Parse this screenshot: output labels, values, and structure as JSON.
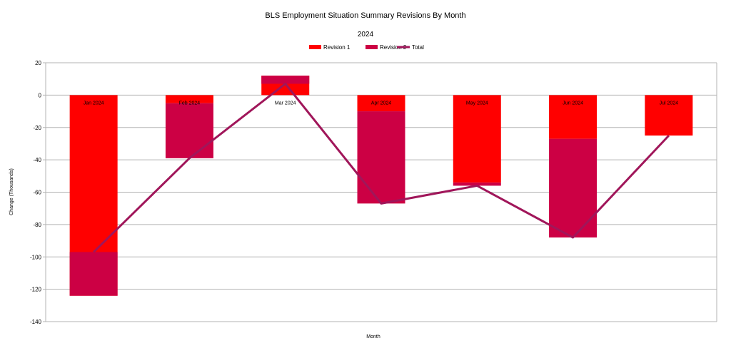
{
  "chart_data": {
    "type": "bar",
    "title": "BLS Employment Situation Summary Revisions By Month",
    "subtitle": "2024",
    "xlabel": "Month",
    "ylabel": "Change (Thousands)",
    "categories": [
      "Jan 2024",
      "Feb 2024",
      "Mar 2024",
      "Apr 2024",
      "May 2024",
      "Jun 2024",
      "Jul 2024"
    ],
    "ylim": [
      -140,
      20
    ],
    "yticks": [
      20,
      0,
      -20,
      -40,
      -60,
      -80,
      -100,
      -120,
      -140
    ],
    "grid": true,
    "legend": "top-center",
    "series": [
      {
        "name": "Revision 1",
        "kind": "bar",
        "stacked": true,
        "color": "#ff0000",
        "values": [
          -124,
          -5,
          12,
          -10,
          -54,
          -27,
          -25
        ]
      },
      {
        "name": "Revision 2",
        "kind": "bar",
        "stacked": true,
        "color": "#cc0044",
        "values": [
          27,
          -34,
          -5,
          -57,
          -2,
          -61,
          null
        ]
      },
      {
        "name": "Total",
        "kind": "line",
        "color": "#a0165a",
        "values": [
          -97,
          -39,
          7,
          -67,
          -56,
          -88,
          -25
        ]
      }
    ]
  }
}
